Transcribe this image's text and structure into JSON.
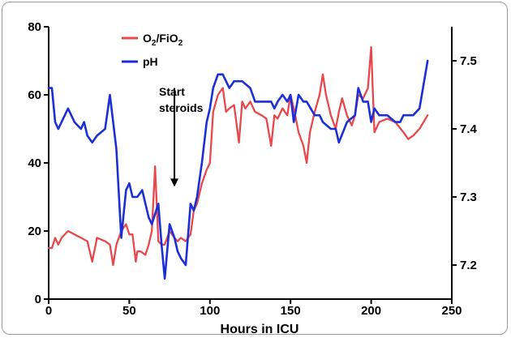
{
  "chart_data": {
    "type": "line",
    "xlabel": "Hours in ICU",
    "ylabel": "",
    "xlim": [
      0,
      250
    ],
    "ylim": [
      0,
      80
    ],
    "y2lim": [
      7.15,
      7.55
    ],
    "x_ticks": [
      0,
      50,
      100,
      150,
      200,
      250
    ],
    "y_ticks": [
      0,
      20,
      40,
      60,
      80
    ],
    "y2_ticks": [
      7.2,
      7.3,
      7.4,
      7.5
    ],
    "legend_position": "top-left",
    "series": [
      {
        "name": "O2/FiO2",
        "name_main": "O",
        "name_sub1": "2",
        "name_mid": "/FiO",
        "name_sub2": "2",
        "axis": "left",
        "color": "#e8474c",
        "x": [
          0,
          2,
          4,
          6,
          8,
          12,
          16,
          20,
          24,
          27,
          30,
          35,
          38,
          40,
          42,
          45,
          48,
          50,
          52,
          54,
          55,
          57,
          60,
          62,
          64,
          66,
          68,
          70,
          72,
          75,
          78,
          80,
          82,
          85,
          88,
          90,
          92,
          95,
          98,
          100,
          102,
          105,
          108,
          110,
          112,
          115,
          118,
          120,
          122,
          125,
          128,
          132,
          135,
          138,
          140,
          142,
          145,
          148,
          150,
          152,
          155,
          158,
          160,
          162,
          165,
          168,
          170,
          172,
          175,
          178,
          180,
          182,
          185,
          188,
          190,
          192,
          195,
          198,
          200,
          202,
          205,
          210,
          215,
          220,
          223,
          226,
          230,
          235
        ],
        "y": [
          15,
          15,
          18,
          16,
          18,
          20,
          19,
          18,
          17,
          11,
          18,
          17,
          16,
          10,
          16,
          20,
          22,
          19,
          19,
          11,
          14,
          14,
          13,
          16,
          20,
          39,
          17,
          16,
          16,
          20,
          18,
          17,
          18,
          17,
          19,
          26,
          28,
          34,
          38,
          40,
          55,
          60,
          62,
          55,
          56,
          57,
          46,
          58,
          56,
          58,
          55,
          54,
          53,
          45,
          54,
          53,
          56,
          54,
          60,
          56,
          49,
          45,
          40,
          49,
          55,
          60,
          66,
          60,
          54,
          50,
          55,
          59,
          54,
          51,
          54,
          60,
          59,
          62,
          74,
          49,
          52,
          53,
          52,
          49,
          47,
          48,
          50,
          54
        ]
      },
      {
        "name": "pH",
        "axis": "right",
        "color": "#1c2fd6",
        "x": [
          0,
          2,
          4,
          6,
          8,
          12,
          16,
          20,
          22,
          24,
          27,
          30,
          35,
          38,
          40,
          42,
          45,
          48,
          50,
          52,
          55,
          58,
          62,
          64,
          68,
          70,
          72,
          75,
          78,
          80,
          82,
          85,
          88,
          90,
          92,
          95,
          98,
          100,
          102,
          105,
          108,
          112,
          115,
          120,
          125,
          128,
          132,
          135,
          138,
          140,
          142,
          145,
          148,
          150,
          152,
          155,
          158,
          160,
          165,
          168,
          170,
          175,
          178,
          180,
          185,
          190,
          192,
          195,
          198,
          200,
          202,
          205,
          210,
          215,
          218,
          220,
          222,
          226,
          230,
          235
        ],
        "y": [
          7.46,
          7.46,
          7.41,
          7.4,
          7.41,
          7.43,
          7.41,
          7.4,
          7.41,
          7.39,
          7.38,
          7.39,
          7.4,
          7.45,
          7.41,
          7.37,
          7.24,
          7.31,
          7.32,
          7.3,
          7.3,
          7.31,
          7.27,
          7.26,
          7.29,
          7.23,
          7.18,
          7.26,
          7.24,
          7.22,
          7.21,
          7.2,
          7.29,
          7.28,
          7.3,
          7.35,
          7.41,
          7.43,
          7.46,
          7.48,
          7.48,
          7.46,
          7.47,
          7.47,
          7.46,
          7.44,
          7.44,
          7.44,
          7.44,
          7.43,
          7.44,
          7.45,
          7.44,
          7.45,
          7.41,
          7.45,
          7.44,
          7.44,
          7.42,
          7.42,
          7.41,
          7.4,
          7.4,
          7.38,
          7.41,
          7.42,
          7.46,
          7.44,
          7.44,
          7.41,
          7.43,
          7.42,
          7.42,
          7.41,
          7.41,
          7.42,
          7.42,
          7.42,
          7.43,
          7.5
        ]
      }
    ],
    "annotation": {
      "line1": "Start",
      "line2": "steroids",
      "x": 78,
      "arrow_from": 62,
      "arrow_to": 33
    }
  }
}
